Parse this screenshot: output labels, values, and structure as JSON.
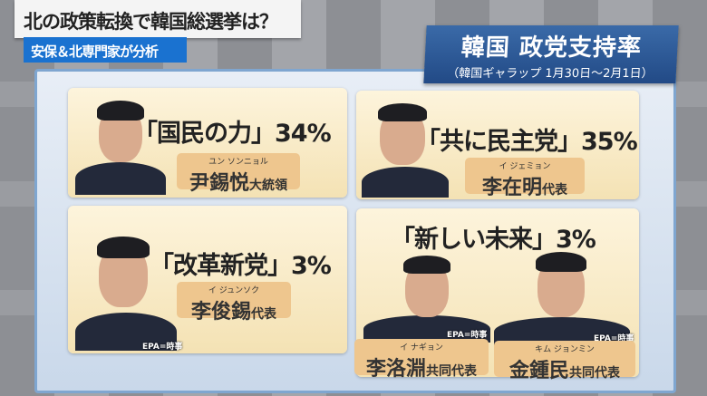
{
  "headline": "北の政策転換で韓国総選挙は？",
  "subheadline": "安保＆北専門家が分析",
  "title": {
    "main": "韓国 政党支持率",
    "source": "（韓国ギャラップ 1月30日〜2月1日）"
  },
  "parties": [
    {
      "party": "「国民の力」34%",
      "support_percent": 34,
      "people": [
        {
          "reading": "ユン ソンニョル",
          "name": "尹錫悦",
          "title": "大統領"
        }
      ]
    },
    {
      "party": "「共に民主党」35%",
      "support_percent": 35,
      "people": [
        {
          "reading": "イ ジェミョン",
          "name": "李在明",
          "title": "代表"
        }
      ]
    },
    {
      "party": "「改革新党」3%",
      "support_percent": 3,
      "credit": "EPA=時事",
      "people": [
        {
          "reading": "イ ジュンソク",
          "name": "李俊錫",
          "title": "代表"
        }
      ]
    },
    {
      "party": "「新しい未来」3%",
      "support_percent": 3,
      "credit": "EPA=時事",
      "people": [
        {
          "reading": "イ ナギョン",
          "name": "李洛淵",
          "title": "共同代表"
        },
        {
          "reading": "キム ジョンミン",
          "name": "金鍾民",
          "title": "共同代表"
        }
      ]
    }
  ]
}
